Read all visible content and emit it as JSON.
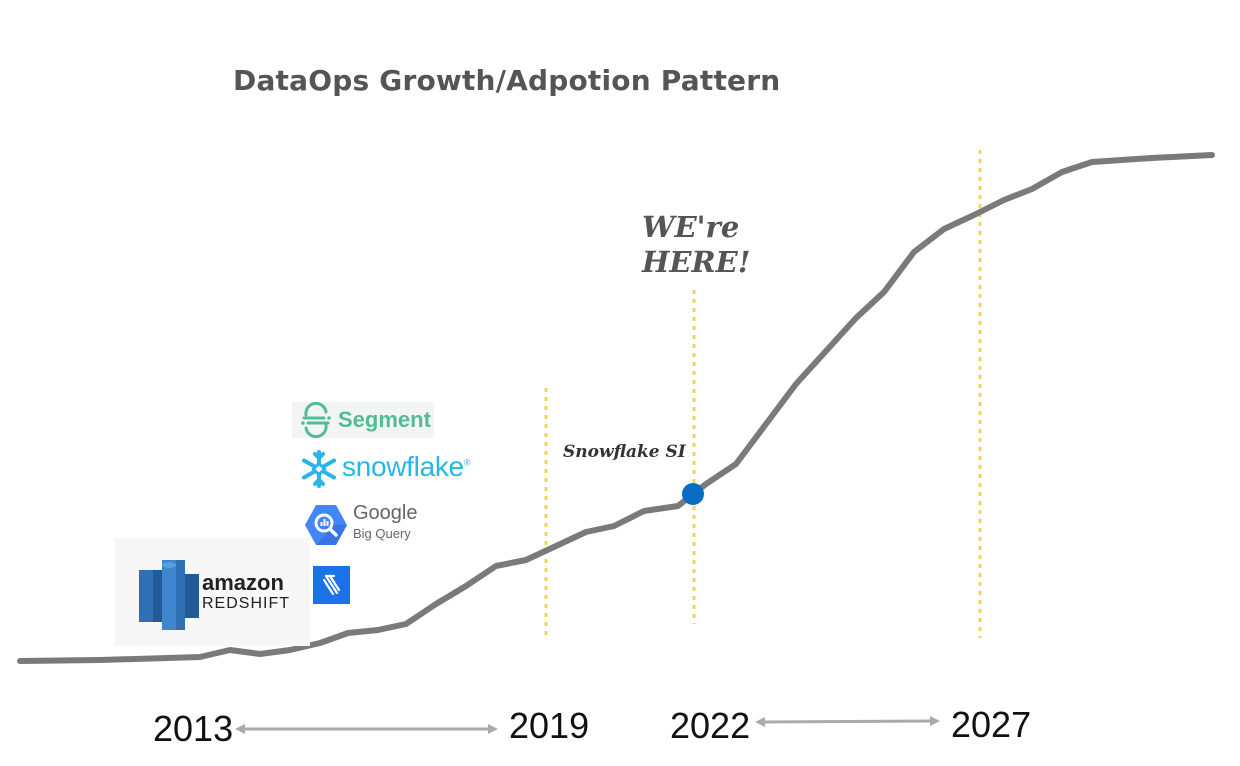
{
  "title": "DataOps Growth/Adpotion Pattern",
  "annotations": {
    "here_line1": "WE're",
    "here_line2": "HERE!",
    "snowflake_si": "Snowflake SI"
  },
  "timeline": {
    "y2013": "2013",
    "y2019": "2019",
    "y2022": "2022",
    "y2027": "2027"
  },
  "logos": {
    "segment": "Segment",
    "snowflake": "snowflake",
    "snowflake_mark": "®",
    "bigquery_line1": "Google",
    "bigquery_line2": "Big Query",
    "redshift_line1": "amazon",
    "redshift_line2": "REDSHIFT"
  },
  "colors": {
    "curve": "#7a7a7a",
    "marker": "#0a6cc4",
    "guide": "#f5d25a",
    "arrow": "#aaaaaa",
    "segment": "#52bd94",
    "snowflake": "#29b5e8",
    "redshift": "#2f6fb4"
  },
  "icons": [
    "segment-logo-icon",
    "snowflake-logo-icon",
    "bigquery-logo-icon",
    "redshift-logo-icon",
    "blue-square-logo-icon"
  ]
}
